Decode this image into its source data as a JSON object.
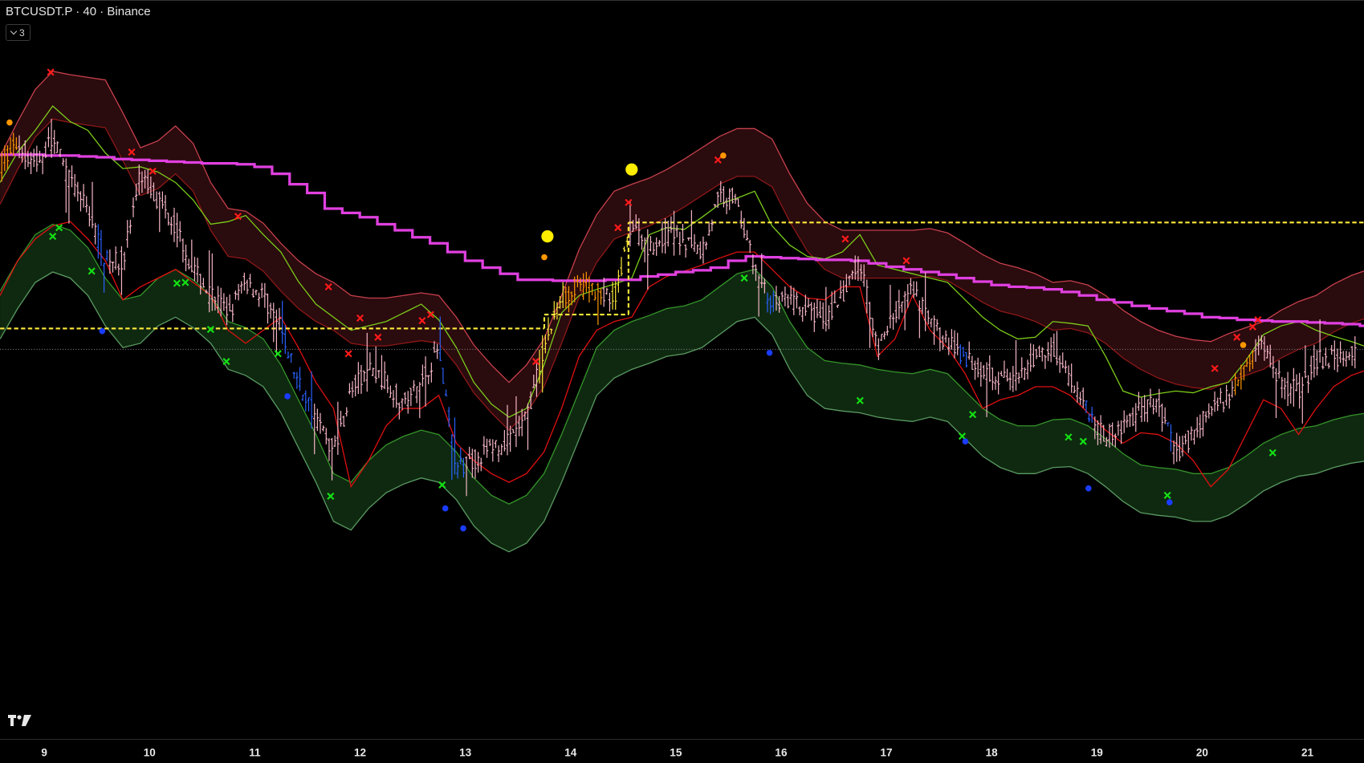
{
  "header": {
    "title": "BTCUSDT.P · 40 · Binance",
    "indicator_toggle_count": "3",
    "indicator_toggle_icon": "chevron-down-icon"
  },
  "logo": "TV",
  "colors": {
    "background": "#000000",
    "bar_default": "#f7b7c8",
    "bar_orange": "#ff9800",
    "bar_yellow": "#ffeb3b",
    "bar_blue": "#2962ff",
    "upper_band_fill": "#2a0b0e",
    "upper_band_outer": "#c8404c",
    "upper_band_inner": "#8e1818",
    "lower_band_fill": "#0f2910",
    "lower_band_top": "#35952a",
    "lower_band_bottom": "#5a9a62",
    "lime_line": "#7ccc1a",
    "red_line": "#e01010",
    "magenta_line": "#e040e0",
    "dashed_level": "#ffeb3b",
    "dotted_level": "#777777",
    "marker_red_x": "#ff1a1a",
    "marker_green_x": "#14e014",
    "marker_blue": "#1a3cff",
    "marker_orange": "#ff9800",
    "marker_yellow": "#ffee00"
  },
  "chart_data": {
    "type": "ohlc",
    "title": "",
    "y_axis_visible": false,
    "x_axis": {
      "unit": "day of month",
      "ticks": [
        "9",
        "10",
        "11",
        "12",
        "13",
        "14",
        "15",
        "16",
        "17",
        "18",
        "19",
        "20",
        "21"
      ],
      "range": [
        8.58,
        21.55
      ]
    },
    "series_sampling": {
      "x_start_day": 8.58,
      "x_step_day": 0.1667
    },
    "series": {
      "price_close": [
        510,
        535,
        510,
        540,
        490,
        460,
        400,
        400,
        500,
        470,
        440,
        390,
        360,
        340,
        375,
        360,
        320,
        260,
        220,
        180,
        250,
        275,
        260,
        235,
        260,
        300,
        160,
        170,
        185,
        190,
        220,
        300,
        360,
        370,
        365,
        355,
        440,
        415,
        430,
        425,
        410,
        475,
        470,
        390,
        350,
        355,
        340,
        335,
        355,
        400,
        300,
        340,
        365,
        330,
        305,
        290,
        275,
        265,
        260,
        290,
        300,
        265,
        230,
        195,
        210,
        230,
        235,
        180,
        200,
        230,
        245,
        285,
        305,
        260,
        250,
        285,
        290,
        290,
        295
      ],
      "upper_band_outer": [
        520,
        560,
        597,
        618,
        614,
        611,
        608,
        570,
        530,
        538,
        555,
        535,
        490,
        460,
        457,
        443,
        420,
        400,
        385,
        375,
        360,
        357,
        357,
        360,
        363,
        360,
        335,
        303,
        280,
        260,
        280,
        310,
        360,
        413,
        453,
        480,
        488,
        495,
        505,
        517,
        530,
        543,
        552,
        552,
        540,
        500,
        466,
        445,
        435,
        435,
        435,
        435,
        435,
        437,
        432,
        420,
        407,
        397,
        392,
        385,
        375,
        377,
        372,
        360,
        343,
        330,
        320,
        313,
        309,
        307,
        316,
        323,
        330,
        343,
        353,
        360,
        373,
        383,
        390
      ],
      "lime_line": [
        490,
        525,
        550,
        578,
        560,
        550,
        524,
        506,
        508,
        502,
        490,
        470,
        442,
        445,
        452,
        430,
        410,
        376,
        350,
        335,
        320,
        325,
        330,
        340,
        350,
        332,
        300,
        260,
        235,
        220,
        230,
        280,
        340,
        360,
        367,
        373,
        380,
        430,
        438,
        436,
        450,
        465,
        472,
        480,
        440,
        418,
        405,
        402,
        410,
        430,
        395,
        390,
        385,
        380,
        375,
        355,
        335,
        320,
        310,
        312,
        330,
        328,
        325,
        290,
        250,
        243,
        247,
        250,
        248,
        255,
        260,
        285,
        315,
        325,
        330,
        320,
        313,
        307,
        300
      ],
      "red_line": [
        360,
        400,
        425,
        440,
        445,
        425,
        400,
        355,
        370,
        380,
        390,
        375,
        360,
        320,
        305,
        320,
        335,
        300,
        260,
        230,
        140,
        170,
        210,
        230,
        230,
        245,
        190,
        170,
        155,
        145,
        155,
        180,
        230,
        290,
        320,
        330,
        335,
        370,
        382,
        388,
        395,
        403,
        410,
        410,
        390,
        370,
        357,
        355,
        370,
        370,
        290,
        310,
        360,
        320,
        300,
        270,
        230,
        240,
        245,
        255,
        255,
        245,
        225,
        205,
        190,
        202,
        200,
        190,
        170,
        140,
        160,
        200,
        240,
        230,
        200,
        230,
        255,
        268,
        275
      ],
      "lower_band_top": [
        365,
        400,
        430,
        442,
        435,
        415,
        380,
        355,
        360,
        380,
        390,
        378,
        360,
        330,
        323,
        310,
        280,
        240,
        200,
        155,
        145,
        170,
        188,
        198,
        205,
        200,
        180,
        150,
        130,
        120,
        130,
        155,
        200,
        250,
        300,
        320,
        330,
        337,
        345,
        348,
        355,
        370,
        385,
        390,
        370,
        330,
        300,
        285,
        282,
        280,
        275,
        272,
        270,
        275,
        270,
        250,
        230,
        217,
        210,
        210,
        217,
        218,
        210,
        195,
        178,
        165,
        162,
        160,
        155,
        155,
        162,
        175,
        190,
        200,
        207,
        210,
        217,
        222,
        225
      ],
      "magenta_step_line": [
        522,
        522,
        522,
        521,
        521,
        520,
        519,
        517,
        516,
        515,
        514,
        513,
        512,
        512,
        511,
        508,
        500,
        488,
        478,
        460,
        455,
        450,
        442,
        435,
        427,
        420,
        410,
        400,
        392,
        385,
        378,
        378,
        377,
        377,
        377,
        378,
        378,
        382,
        384,
        387,
        389,
        392,
        400,
        405,
        404,
        403,
        402,
        401,
        401,
        400,
        397,
        393,
        390,
        387,
        384,
        380,
        376,
        372,
        370,
        369,
        367,
        364,
        360,
        355,
        352,
        348,
        345,
        342,
        339,
        335,
        334,
        332,
        331,
        330,
        330,
        329,
        328,
        327,
        325
      ]
    },
    "band_width": 55,
    "bar_color_segments": [
      {
        "from": 8.58,
        "to": 8.76,
        "color": "orange"
      },
      {
        "from": 9.5,
        "to": 9.6,
        "color": "blue"
      },
      {
        "from": 11.25,
        "to": 11.55,
        "color": "blue"
      },
      {
        "from": 12.75,
        "to": 13.0,
        "color": "blue"
      },
      {
        "from": 13.7,
        "to": 13.95,
        "color": "yellow"
      },
      {
        "from": 13.95,
        "to": 14.3,
        "color": "orange"
      },
      {
        "from": 14.38,
        "to": 14.55,
        "color": "yellow"
      },
      {
        "from": 15.85,
        "to": 15.95,
        "color": "blue"
      },
      {
        "from": 17.7,
        "to": 17.76,
        "color": "blue"
      },
      {
        "from": 18.88,
        "to": 18.96,
        "color": "blue"
      },
      {
        "from": 19.65,
        "to": 19.72,
        "color": "blue"
      },
      {
        "from": 20.3,
        "to": 20.5,
        "color": "orange"
      }
    ],
    "levels": {
      "dashed": [
        {
          "from": 8.58,
          "to": 13.75,
          "level": 322
        },
        {
          "from": 13.75,
          "to": 14.55,
          "level": 338
        },
        {
          "from": 14.55,
          "to": 21.55,
          "level": 444
        }
      ],
      "dotted": 298
    },
    "markers": {
      "red_x": [
        [
          9.06,
          617
        ],
        [
          9.83,
          525
        ],
        [
          10.03,
          503
        ],
        [
          10.84,
          451
        ],
        [
          11.7,
          370
        ],
        [
          11.89,
          293
        ],
        [
          12.0,
          334
        ],
        [
          12.17,
          312
        ],
        [
          12.59,
          331
        ],
        [
          12.67,
          338
        ],
        [
          13.67,
          284
        ],
        [
          14.45,
          438
        ],
        [
          14.55,
          467
        ],
        [
          15.4,
          516
        ],
        [
          16.61,
          425
        ],
        [
          17.19,
          400
        ],
        [
          20.12,
          276
        ],
        [
          20.33,
          312
        ],
        [
          20.48,
          324
        ],
        [
          20.53,
          332
        ]
      ],
      "green_x": [
        [
          9.08,
          428
        ],
        [
          9.14,
          438
        ],
        [
          9.45,
          388
        ],
        [
          10.26,
          374
        ],
        [
          10.34,
          375
        ],
        [
          10.58,
          321
        ],
        [
          10.73,
          284
        ],
        [
          11.22,
          293
        ],
        [
          11.72,
          129
        ],
        [
          12.78,
          142
        ],
        [
          15.65,
          380
        ],
        [
          16.75,
          239
        ],
        [
          17.72,
          198
        ],
        [
          17.82,
          223
        ],
        [
          18.73,
          197
        ],
        [
          18.87,
          192
        ],
        [
          19.67,
          130
        ],
        [
          20.67,
          179
        ]
      ],
      "blue_dot": [
        [
          9.55,
          319
        ],
        [
          11.31,
          244
        ],
        [
          12.81,
          115
        ],
        [
          12.98,
          92
        ],
        [
          15.89,
          294
        ],
        [
          17.75,
          192
        ],
        [
          18.92,
          138
        ],
        [
          19.69,
          122
        ]
      ],
      "orange_dot": [
        [
          8.67,
          559
        ],
        [
          13.75,
          404
        ],
        [
          15.45,
          521
        ],
        [
          20.39,
          303
        ]
      ],
      "yellow_big_dot": [
        [
          13.78,
          428
        ],
        [
          14.58,
          505
        ]
      ]
    }
  }
}
